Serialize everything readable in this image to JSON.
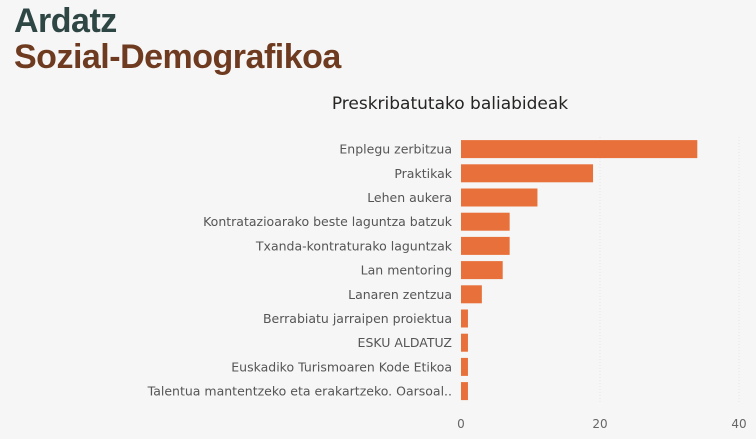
{
  "header": {
    "line1": "Ardatz",
    "line2": "Sozial-Demografikoa"
  },
  "chart_data": {
    "type": "bar",
    "orientation": "horizontal",
    "title": "Preskribatutako baliabideak",
    "xlabel": "",
    "ylabel": "",
    "categories": [
      "Enplegu zerbitzua",
      "Praktikak",
      "Lehen aukera",
      "Kontratazioarako beste laguntza batzuk",
      "Txanda-kontraturako laguntzak",
      "Lan mentoring",
      "Lanaren zentzua",
      "Berrabiatu jarraipen proiektua",
      "ESKU ALDATUZ",
      "Euskadiko Turismoaren Kode Etikoa",
      "Talentua mantentzeko eta erakartzeko. Oarsoal.."
    ],
    "values": [
      34,
      19,
      11,
      7,
      7,
      6,
      3,
      1,
      1,
      1,
      1
    ],
    "xlim": [
      0,
      40
    ],
    "xticks": [
      0,
      20,
      40
    ],
    "bar_color": "#e8703a",
    "grid": true,
    "legend": "none"
  }
}
